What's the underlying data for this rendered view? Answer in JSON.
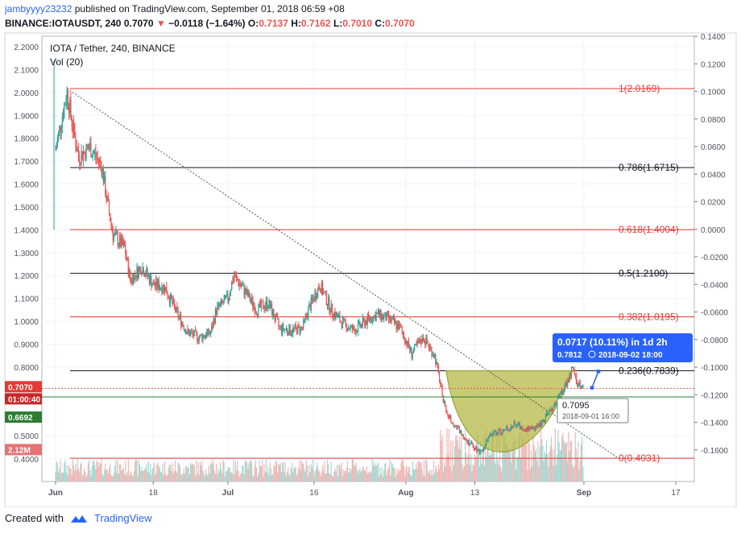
{
  "header": {
    "user": "jambyyyy23232",
    "published_text": "published on TradingView.com, September 01, 2018 06:59 +08",
    "symbol": "BINANCE:IOTAUSDT, 240",
    "last": "0.7070",
    "change": "−0.0118 (−1.64%)",
    "o_label": "O:",
    "o": "0.7137",
    "h_label": "H:",
    "h": "0.7162",
    "l_label": "L:",
    "l": "0.7010",
    "c_label": "C:",
    "c": "0.7070"
  },
  "legend": {
    "title": "IOTA / Tether, 240, BINANCE",
    "vol": "Vol (20)"
  },
  "price_tags": {
    "last": "0.7070",
    "countdown": "01:00:40",
    "green_level": "0.6692",
    "volume": "2.12M"
  },
  "callout": {
    "line1": "0.0717 (10.11%) in 1d 2h",
    "line2_price": "0.7812",
    "line2_time": "2018-09-02  18:00"
  },
  "tooltip": {
    "price": "0.7095",
    "time": "2018-09-01 16:00"
  },
  "footer": {
    "created_with": "Created with",
    "brand": "TradingView"
  },
  "colors": {
    "fib_red": "#e53935",
    "fib_black": "#131722",
    "candle_up": "#26a69a",
    "candle_down": "#ef5350",
    "pattern_fill": "#b5b845",
    "callout_bg": "#2962ff",
    "green_tag": "#2e7d32"
  },
  "chart_data": {
    "type": "candlestick",
    "left_axis": {
      "ticks": [
        "2.2000",
        "2.1000",
        "2.0000",
        "1.9000",
        "1.8000",
        "1.7000",
        "1.6000",
        "1.5000",
        "1.4000",
        "1.3000",
        "1.2000",
        "1.1000",
        "1.0000",
        "0.9000",
        "0.8000",
        "0.5000",
        "0.4000"
      ],
      "values": [
        2.2,
        2.1,
        2.0,
        1.9,
        1.8,
        1.7,
        1.6,
        1.5,
        1.4,
        1.3,
        1.2,
        1.1,
        1.0,
        0.9,
        0.8,
        0.5,
        0.4
      ],
      "range": [
        0.35,
        2.25
      ]
    },
    "right_axis": {
      "ticks": [
        "0.1400",
        "0.1200",
        "0.1000",
        "0.0800",
        "0.0600",
        "0.0400",
        "0.0200",
        "0.0000",
        "-0.0200",
        "-0.0400",
        "-0.0600",
        "-0.0800",
        "-0.1000",
        "-0.1200",
        "-0.1400",
        "-0.1600"
      ],
      "values": [
        0.14,
        0.12,
        0.1,
        0.08,
        0.06,
        0.04,
        0.02,
        0.0,
        -0.02,
        -0.04,
        -0.06,
        -0.08,
        -0.1,
        -0.12,
        -0.14,
        -0.16
      ]
    },
    "x_axis": {
      "ticks": [
        "Jun",
        "18",
        "Jul",
        "16",
        "Aug",
        "13",
        "Sep",
        "17"
      ],
      "bold": [
        "Jun",
        "Jul",
        "Aug",
        "Sep"
      ],
      "dates": [
        "2018-06-01",
        "2018-06-18",
        "2018-07-01",
        "2018-07-16",
        "2018-08-01",
        "2018-08-13",
        "2018-09-01",
        "2018-09-17"
      ]
    },
    "fib_levels": [
      {
        "ratio": "1",
        "price": 2.0169,
        "label": "1(2.0169)",
        "color": "red"
      },
      {
        "ratio": "0.786",
        "price": 1.6715,
        "label": "0.786(1.6715)",
        "color": "black"
      },
      {
        "ratio": "0.618",
        "price": 1.4004,
        "label": "0.618(1.4004)",
        "color": "red"
      },
      {
        "ratio": "0.5",
        "price": 1.21,
        "label": "0.5(1.2100)",
        "color": "black"
      },
      {
        "ratio": "0.382",
        "price": 1.0195,
        "label": "0.382(1.0195)",
        "color": "red"
      },
      {
        "ratio": "0.236",
        "price": 0.7839,
        "label": "0.236(0.7839)",
        "color": "black"
      },
      {
        "ratio": "0",
        "price": 0.4031,
        "label": "0(0.4031)",
        "color": "red"
      }
    ],
    "close_path": [
      [
        "2018-06-01",
        1.75
      ],
      [
        "2018-06-02",
        1.88
      ],
      [
        "2018-06-03",
        2.0
      ],
      [
        "2018-06-04",
        1.85
      ],
      [
        "2018-06-05",
        1.72
      ],
      [
        "2018-06-07",
        1.76
      ],
      [
        "2018-06-09",
        1.68
      ],
      [
        "2018-06-10",
        1.52
      ],
      [
        "2018-06-11",
        1.38
      ],
      [
        "2018-06-13",
        1.32
      ],
      [
        "2018-06-14",
        1.18
      ],
      [
        "2018-06-16",
        1.24
      ],
      [
        "2018-06-18",
        1.16
      ],
      [
        "2018-06-20",
        1.15
      ],
      [
        "2018-06-22",
        1.04
      ],
      [
        "2018-06-24",
        0.95
      ],
      [
        "2018-06-26",
        0.93
      ],
      [
        "2018-06-28",
        0.95
      ],
      [
        "2018-06-29",
        1.05
      ],
      [
        "2018-07-01",
        1.1
      ],
      [
        "2018-07-02",
        1.2
      ],
      [
        "2018-07-04",
        1.13
      ],
      [
        "2018-07-06",
        1.05
      ],
      [
        "2018-07-08",
        1.08
      ],
      [
        "2018-07-10",
        0.97
      ],
      [
        "2018-07-12",
        0.96
      ],
      [
        "2018-07-14",
        0.97
      ],
      [
        "2018-07-15",
        1.05
      ],
      [
        "2018-07-17",
        1.16
      ],
      [
        "2018-07-19",
        1.05
      ],
      [
        "2018-07-21",
        0.99
      ],
      [
        "2018-07-23",
        0.96
      ],
      [
        "2018-07-25",
        1.0
      ],
      [
        "2018-07-27",
        1.03
      ],
      [
        "2018-07-29",
        1.01
      ],
      [
        "2018-07-31",
        0.97
      ],
      [
        "2018-08-02",
        0.86
      ],
      [
        "2018-08-04",
        0.93
      ],
      [
        "2018-08-06",
        0.85
      ],
      [
        "2018-08-08",
        0.6
      ],
      [
        "2018-08-10",
        0.53
      ],
      [
        "2018-08-12",
        0.47
      ],
      [
        "2018-08-14",
        0.43
      ],
      [
        "2018-08-16",
        0.51
      ],
      [
        "2018-08-18",
        0.52
      ],
      [
        "2018-08-20",
        0.55
      ],
      [
        "2018-08-22",
        0.53
      ],
      [
        "2018-08-24",
        0.54
      ],
      [
        "2018-08-26",
        0.6
      ],
      [
        "2018-08-28",
        0.68
      ],
      [
        "2018-08-30",
        0.79
      ],
      [
        "2018-08-31",
        0.72
      ],
      [
        "2018-09-01",
        0.707
      ]
    ],
    "volume_scale_max": "2.12M",
    "projection": {
      "from_price": 0.7095,
      "to_price": 0.7812,
      "change": 0.0717,
      "change_pct": 10.11
    }
  }
}
